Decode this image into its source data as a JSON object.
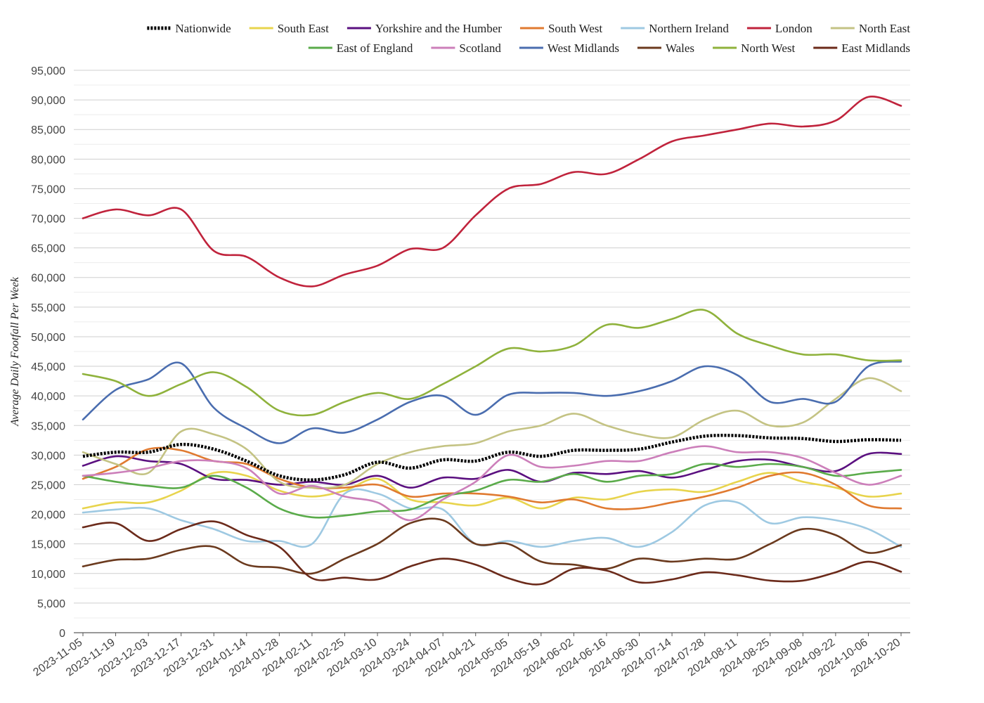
{
  "chart_data": {
    "type": "line",
    "title": "",
    "xlabel": "",
    "ylabel": "Average Daily Footfall Per Week",
    "ylim": [
      0,
      95000
    ],
    "y_ticks": [
      "0",
      "5,000",
      "10,000",
      "15,000",
      "20,000",
      "25,000",
      "30,000",
      "35,000",
      "40,000",
      "45,000",
      "50,000",
      "55,000",
      "60,000",
      "65,000",
      "70,000",
      "75,000",
      "80,000",
      "85,000",
      "90,000",
      "95,000"
    ],
    "grid": "horizontal",
    "legend_position": "top",
    "x_tick_labels": [
      "2023-11-05",
      "2023-11-19",
      "2023-12-03",
      "2023-12-17",
      "2023-12-31",
      "2024-01-14",
      "2024-01-28",
      "2024-02-11",
      "2024-02-25",
      "2024-03-10",
      "2024-03-24",
      "2024-04-07",
      "2024-04-21",
      "2024-05-05",
      "2024-05-19",
      "2024-06-02",
      "2024-06-16",
      "2024-06-30",
      "2024-07-14",
      "2024-07-28",
      "2024-08-11",
      "2024-08-25",
      "2024-09-08",
      "2024-09-22",
      "2024-10-06",
      "2024-10-20"
    ],
    "series": [
      {
        "name": "Nationwide",
        "color": "#000000",
        "dashed": true,
        "values": [
          29800,
          30500,
          30500,
          31800,
          31000,
          29000,
          26500,
          25800,
          26700,
          28800,
          27800,
          29200,
          29000,
          30500,
          29800,
          30800,
          30800,
          31000,
          32200,
          33200,
          33300,
          32900,
          32800,
          32300,
          32600,
          32500
        ]
      },
      {
        "name": "South East",
        "color": "#e8d44d",
        "values": [
          21000,
          22000,
          22000,
          24000,
          27000,
          26500,
          24000,
          23000,
          24000,
          26000,
          22500,
          22000,
          21500,
          22800,
          21000,
          22800,
          22500,
          23800,
          24200,
          23800,
          25500,
          27000,
          25500,
          24500,
          23000,
          23500
        ]
      },
      {
        "name": "Yorkshire and the Humber",
        "color": "#5b1080",
        "values": [
          28200,
          29800,
          29000,
          28500,
          26000,
          25800,
          25000,
          25500,
          25000,
          26500,
          24500,
          26200,
          26000,
          27500,
          25500,
          27000,
          26800,
          27300,
          26200,
          27500,
          29000,
          29200,
          28000,
          27300,
          30200,
          30200
        ]
      },
      {
        "name": "South West",
        "color": "#e07a30",
        "values": [
          26000,
          28000,
          31000,
          30800,
          29000,
          28500,
          26000,
          24500,
          24500,
          25000,
          23000,
          23500,
          23500,
          23000,
          22000,
          22500,
          21000,
          21000,
          22000,
          23000,
          24500,
          26500,
          27000,
          25000,
          21500,
          21000
        ]
      },
      {
        "name": "Northern Ireland",
        "color": "#9ec9e2",
        "values": [
          20300,
          20800,
          21000,
          19000,
          17500,
          15500,
          15500,
          15000,
          23500,
          23500,
          21000,
          20800,
          15000,
          15500,
          14500,
          15500,
          16000,
          14500,
          17000,
          21500,
          22000,
          18500,
          19500,
          19000,
          17500,
          14500
        ]
      },
      {
        "name": "London",
        "color": "#c0233c",
        "values": [
          70000,
          71500,
          70500,
          71500,
          64500,
          63500,
          60000,
          58500,
          60500,
          62000,
          64800,
          65000,
          70500,
          75000,
          75800,
          77800,
          77500,
          80000,
          83000,
          84000,
          85000,
          86000,
          85500,
          86500,
          90500,
          89000
        ]
      },
      {
        "name": "North East",
        "color": "#c4c384",
        "values": [
          30500,
          28500,
          27000,
          34000,
          33500,
          31000,
          25500,
          24500,
          25000,
          28500,
          30500,
          31500,
          32000,
          34000,
          35000,
          37000,
          35000,
          33500,
          33000,
          36000,
          37500,
          35000,
          35500,
          39500,
          43000,
          40800
        ]
      },
      {
        "name": "East of England",
        "color": "#5aab4a",
        "values": [
          26500,
          25500,
          24800,
          24500,
          26500,
          24500,
          21000,
          19500,
          19800,
          20500,
          20800,
          23000,
          24000,
          25800,
          25500,
          26800,
          25500,
          26500,
          26800,
          28500,
          28000,
          28500,
          28000,
          26500,
          27000,
          27500
        ]
      },
      {
        "name": "Scotland",
        "color": "#cc7fba",
        "values": [
          26500,
          27000,
          27800,
          29000,
          29000,
          27800,
          23500,
          24800,
          23000,
          22000,
          19000,
          22500,
          25500,
          30000,
          28000,
          28200,
          29000,
          29000,
          30500,
          31500,
          30500,
          30500,
          29500,
          27000,
          25000,
          26500
        ]
      },
      {
        "name": "West Midlands",
        "color": "#4a6daf",
        "values": [
          36000,
          41000,
          42800,
          45500,
          38000,
          34500,
          32000,
          34500,
          33800,
          36000,
          39000,
          40000,
          36800,
          40200,
          40500,
          40500,
          40000,
          40800,
          42500,
          45000,
          43500,
          39000,
          39500,
          39000,
          45000,
          45800
        ]
      },
      {
        "name": "Wales",
        "color": "#6b3a1e",
        "values": [
          11200,
          12300,
          12500,
          14000,
          14500,
          11500,
          11000,
          10000,
          12500,
          15000,
          18500,
          19000,
          15000,
          15000,
          12000,
          11500,
          10800,
          12500,
          12000,
          12500,
          12500,
          15000,
          17500,
          16500,
          13500,
          14800
        ]
      },
      {
        "name": "North West",
        "color": "#8fb23c",
        "values": [
          43700,
          42500,
          40000,
          42000,
          44000,
          41500,
          37500,
          36800,
          39000,
          40500,
          39500,
          42000,
          45000,
          48000,
          47500,
          48500,
          52000,
          51500,
          53000,
          54500,
          50500,
          48500,
          47000,
          47000,
          46000,
          46000
        ]
      },
      {
        "name": "East Midlands",
        "color": "#6b2a1a",
        "values": [
          17800,
          18500,
          15500,
          17500,
          18800,
          16500,
          14500,
          9200,
          9300,
          9000,
          11200,
          12500,
          11500,
          9200,
          8200,
          10800,
          10500,
          8500,
          9000,
          10200,
          9700,
          8800,
          8800,
          10200,
          12000,
          10300
        ]
      }
    ]
  }
}
